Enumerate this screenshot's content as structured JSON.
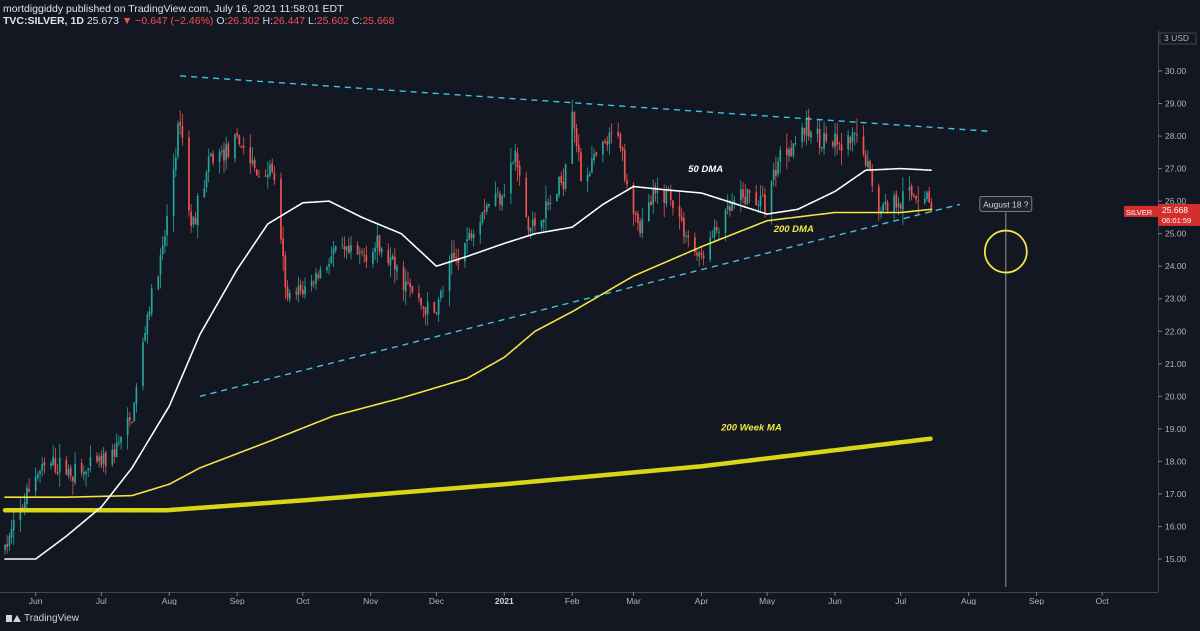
{
  "header": {
    "line1": "mortdiggiddy published on TradingView.com, July 16, 2021 11:58:01 EDT",
    "symbol": "TVC:SILVER, 1D",
    "last": "25.673",
    "change": "▼ −0.647 (−2.46%)",
    "o_label": "O:",
    "o_val": "26.302",
    "h_label": "H:",
    "h_val": "26.447",
    "l_label": "L:",
    "l_val": "25.602",
    "c_label": "C:",
    "c_val": "25.668"
  },
  "footer": {
    "brand": "TradingView",
    "brand_icon": "tradingview-logo-icon"
  },
  "colors": {
    "background": "#131722",
    "up": "#26a69a",
    "down": "#ef5350",
    "ma_fast": "#ffffff",
    "ma_slow": "#f5e642",
    "trend": "#3ec6e0",
    "grid": "#2a2e39"
  },
  "chart_data": {
    "type": "candlestick",
    "symbol": "SILVER",
    "timeframe": "1D",
    "currency": "USD",
    "y_axis_label": "USD",
    "ylim": [
      14.3,
      31.0
    ],
    "y_ticks": [
      15.0,
      16.0,
      17.0,
      18.0,
      19.0,
      20.0,
      21.0,
      22.0,
      23.0,
      24.0,
      25.0,
      26.0,
      27.0,
      28.0,
      29.0,
      30.0
    ],
    "x_ticks": [
      "Jun",
      "Jul",
      "Aug",
      "Sep",
      "Oct",
      "Nov",
      "Dec",
      "2021",
      "Feb",
      "Mar",
      "Apr",
      "May",
      "Jun",
      "Jul",
      "Aug",
      "Sep",
      "Oct"
    ],
    "x_tick_months": [
      0,
      1,
      2,
      3,
      4,
      5,
      6,
      7,
      8,
      9,
      10,
      11,
      12,
      13,
      14,
      15,
      16
    ],
    "x_start": "2020-05-18",
    "last_price_label": {
      "symbol": "SILVER",
      "price": "25.668",
      "countdown": "06:01:59"
    },
    "price_path": [
      [
        "2020-05-18",
        15.3
      ],
      [
        "2020-06-01",
        17.6
      ],
      [
        "2020-06-08",
        17.9
      ],
      [
        "2020-06-22",
        17.6
      ],
      [
        "2020-07-06",
        18.2
      ],
      [
        "2020-07-15",
        19.3
      ],
      [
        "2020-07-22",
        22.5
      ],
      [
        "2020-07-29",
        24.4
      ],
      [
        "2020-08-06",
        28.6
      ],
      [
        "2020-08-11",
        25.2
      ],
      [
        "2020-08-20",
        27.3
      ],
      [
        "2020-09-03",
        27.8
      ],
      [
        "2020-09-10",
        26.8
      ],
      [
        "2020-09-17",
        27.0
      ],
      [
        "2020-09-24",
        22.9
      ],
      [
        "2020-10-05",
        23.5
      ],
      [
        "2020-10-15",
        24.4
      ],
      [
        "2020-10-26",
        24.3
      ],
      [
        "2020-11-04",
        24.6
      ],
      [
        "2020-11-10",
        24.1
      ],
      [
        "2020-11-24",
        22.8
      ],
      [
        "2020-11-30",
        22.5
      ],
      [
        "2020-12-08",
        24.1
      ],
      [
        "2020-12-15",
        24.8
      ],
      [
        "2020-12-22",
        25.8
      ],
      [
        "2020-12-31",
        26.3
      ],
      [
        "2021-01-06",
        27.4
      ],
      [
        "2021-01-12",
        25.1
      ],
      [
        "2021-01-20",
        25.7
      ],
      [
        "2021-01-28",
        26.7
      ],
      [
        "2021-02-01",
        29.0
      ],
      [
        "2021-02-05",
        26.7
      ],
      [
        "2021-02-12",
        27.3
      ],
      [
        "2021-02-22",
        28.2
      ],
      [
        "2021-02-26",
        26.6
      ],
      [
        "2021-03-04",
        25.2
      ],
      [
        "2021-03-10",
        26.1
      ],
      [
        "2021-03-17",
        26.3
      ],
      [
        "2021-03-25",
        25.0
      ],
      [
        "2021-03-31",
        24.2
      ],
      [
        "2021-04-08",
        25.1
      ],
      [
        "2021-04-16",
        25.9
      ],
      [
        "2021-04-23",
        26.2
      ],
      [
        "2021-04-30",
        25.9
      ],
      [
        "2021-05-07",
        27.5
      ],
      [
        "2021-05-13",
        27.8
      ],
      [
        "2021-05-18",
        28.2
      ],
      [
        "2021-05-27",
        27.9
      ],
      [
        "2021-06-04",
        27.6
      ],
      [
        "2021-06-10",
        27.9
      ],
      [
        "2021-06-16",
        27.1
      ],
      [
        "2021-06-21",
        25.8
      ],
      [
        "2021-07-01",
        26.1
      ],
      [
        "2021-07-07",
        26.2
      ],
      [
        "2021-07-13",
        26.2
      ],
      [
        "2021-07-15",
        25.67
      ]
    ],
    "ma_50": {
      "label": "50 DMA",
      "points": [
        [
          "2020-05-18",
          15.0
        ],
        [
          "2020-06-01",
          15.0
        ],
        [
          "2020-06-15",
          15.7
        ],
        [
          "2020-07-01",
          16.6
        ],
        [
          "2020-07-15",
          17.8
        ],
        [
          "2020-08-01",
          19.7
        ],
        [
          "2020-08-15",
          21.9
        ],
        [
          "2020-09-01",
          23.9
        ],
        [
          "2020-09-15",
          25.3
        ],
        [
          "2020-10-01",
          25.95
        ],
        [
          "2020-10-13",
          26.0
        ],
        [
          "2020-10-28",
          25.5
        ],
        [
          "2020-11-15",
          25.0
        ],
        [
          "2020-12-01",
          24.0
        ],
        [
          "2020-12-15",
          24.3
        ],
        [
          "2021-01-01",
          24.7
        ],
        [
          "2021-01-15",
          25.0
        ],
        [
          "2021-02-01",
          25.2
        ],
        [
          "2021-02-15",
          25.9
        ],
        [
          "2021-03-01",
          26.45
        ],
        [
          "2021-03-15",
          26.35
        ],
        [
          "2021-04-01",
          26.25
        ],
        [
          "2021-04-15",
          25.95
        ],
        [
          "2021-05-01",
          25.6
        ],
        [
          "2021-05-15",
          25.75
        ],
        [
          "2021-06-01",
          26.3
        ],
        [
          "2021-06-15",
          26.95
        ],
        [
          "2021-07-01",
          27.0
        ],
        [
          "2021-07-15",
          26.95
        ]
      ]
    },
    "ma_200": {
      "label": "200 DMA",
      "points": [
        [
          "2020-05-18",
          16.9
        ],
        [
          "2020-06-15",
          16.9
        ],
        [
          "2020-07-15",
          16.95
        ],
        [
          "2020-08-01",
          17.3
        ],
        [
          "2020-08-15",
          17.8
        ],
        [
          "2020-09-15",
          18.6
        ],
        [
          "2020-10-15",
          19.4
        ],
        [
          "2020-11-15",
          19.95
        ],
        [
          "2020-12-15",
          20.55
        ],
        [
          "2021-01-01",
          21.2
        ],
        [
          "2021-01-15",
          22.0
        ],
        [
          "2021-02-01",
          22.6
        ],
        [
          "2021-03-01",
          23.7
        ],
        [
          "2021-04-01",
          24.6
        ],
        [
          "2021-05-01",
          25.4
        ],
        [
          "2021-06-01",
          25.65
        ],
        [
          "2021-07-01",
          25.65
        ],
        [
          "2021-07-15",
          25.75
        ]
      ]
    },
    "ma_200w": {
      "label": "200 Week MA",
      "points": [
        [
          "2020-05-18",
          16.5
        ],
        [
          "2020-07-31",
          16.5
        ],
        [
          "2020-10-01",
          16.8
        ],
        [
          "2021-01-01",
          17.3
        ],
        [
          "2021-04-01",
          17.85
        ],
        [
          "2021-07-15",
          18.7
        ]
      ]
    },
    "trendlines": [
      {
        "name": "resistance",
        "from": [
          "2020-08-06",
          29.85
        ],
        "to": [
          "2021-08-10",
          28.15
        ]
      },
      {
        "name": "support",
        "from": [
          "2020-08-15",
          20.0
        ],
        "to": [
          "2021-07-28",
          25.9
        ]
      }
    ],
    "annotations": [
      {
        "name": "august-18-label",
        "text": "August 18 ?",
        "date": "2021-08-18",
        "price": 25.9
      },
      {
        "name": "target-circle",
        "date": "2021-08-18",
        "price": 24.45
      },
      {
        "name": "vertical-marker",
        "date": "2021-08-18"
      }
    ]
  }
}
